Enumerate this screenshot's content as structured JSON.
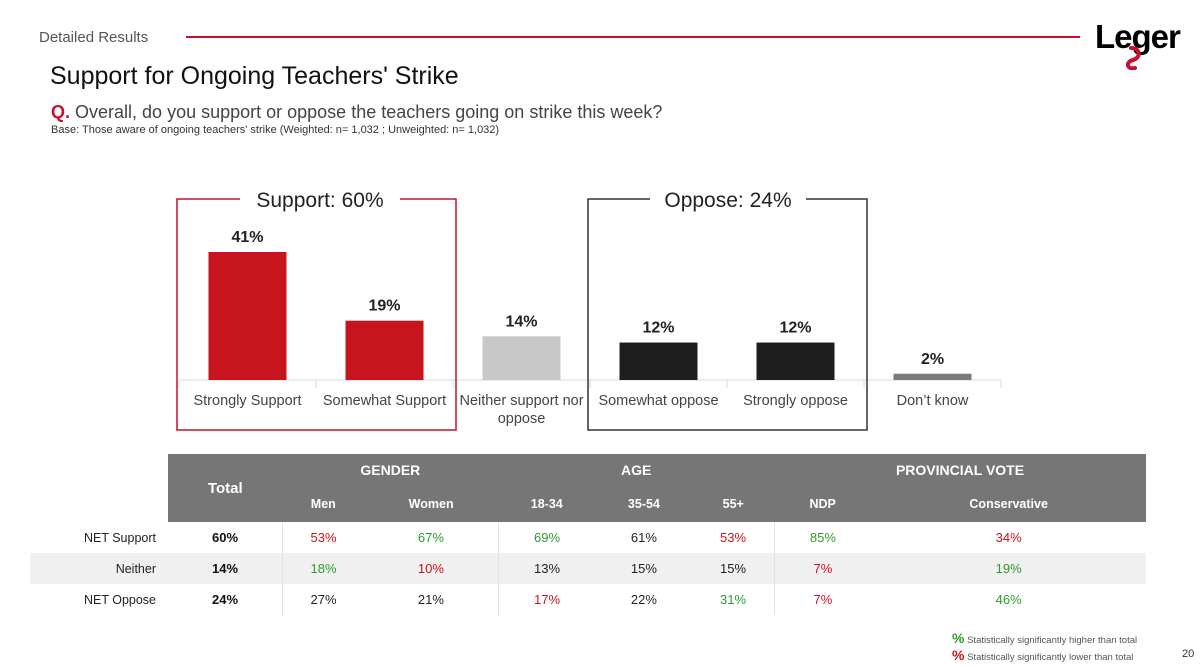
{
  "header": {
    "section": "Detailed Results",
    "logo_text": "Leger",
    "title": "Support for Ongoing Teachers' Strike",
    "question_prefix": "Q.",
    "question": "Overall, do you support or oppose the teachers going on strike this week?",
    "base": "Base: Those aware of ongoing teachers' strike (Weighted: n= 1,032 ; Unweighted: n= 1,032)"
  },
  "colors": {
    "accent_red": "#c8102e",
    "bar_red": "#c8141c",
    "bar_grey": "#c8c8c8",
    "bar_black": "#1e1e1e",
    "bar_darkgrey": "#7a7a7a",
    "higher": "#2e9b2e",
    "lower": "#d0101a"
  },
  "chart_data": {
    "type": "bar",
    "categories": [
      "Strongly Support",
      "Somewhat Support",
      "Neither support nor oppose",
      "Somewhat oppose",
      "Strongly oppose",
      "Don’t know"
    ],
    "values": [
      41,
      19,
      14,
      12,
      12,
      2
    ],
    "data_labels": [
      "41%",
      "19%",
      "14%",
      "12%",
      "12%",
      "2%"
    ],
    "groups": [
      {
        "label": "Support: 60%",
        "categories": [
          "Strongly Support",
          "Somewhat Support"
        ],
        "color": "#c8102e"
      },
      {
        "label": "Oppose: 24%",
        "categories": [
          "Somewhat oppose",
          "Strongly oppose"
        ],
        "color": "#333333"
      }
    ],
    "ylim": [
      0,
      45
    ]
  },
  "table": {
    "total_header": "Total",
    "groups": [
      {
        "label": "GENDER",
        "columns": [
          "Men",
          "Women"
        ]
      },
      {
        "label": "AGE",
        "columns": [
          "18-34",
          "35-54",
          "55+"
        ]
      },
      {
        "label": "PROVINCIAL VOTE",
        "columns": [
          "NDP",
          "Conservative"
        ]
      }
    ],
    "rows": [
      {
        "label": "NET Support",
        "total": "60%",
        "cells": [
          {
            "v": "53%",
            "s": "lo"
          },
          {
            "v": "67%",
            "s": "hi"
          },
          {
            "v": "69%",
            "s": "hi"
          },
          {
            "v": "61%",
            "s": "nm"
          },
          {
            "v": "53%",
            "s": "lo"
          },
          {
            "v": "85%",
            "s": "hi"
          },
          {
            "v": "34%",
            "s": "lo"
          }
        ]
      },
      {
        "label": "Neither",
        "total": "14%",
        "cells": [
          {
            "v": "18%",
            "s": "hi"
          },
          {
            "v": "10%",
            "s": "lo"
          },
          {
            "v": "13%",
            "s": "nm"
          },
          {
            "v": "15%",
            "s": "nm"
          },
          {
            "v": "15%",
            "s": "nm"
          },
          {
            "v": "7%",
            "s": "lo"
          },
          {
            "v": "19%",
            "s": "hi"
          }
        ]
      },
      {
        "label": "NET Oppose",
        "total": "24%",
        "cells": [
          {
            "v": "27%",
            "s": "nm"
          },
          {
            "v": "21%",
            "s": "nm"
          },
          {
            "v": "17%",
            "s": "lo"
          },
          {
            "v": "22%",
            "s": "nm"
          },
          {
            "v": "31%",
            "s": "hi"
          },
          {
            "v": "7%",
            "s": "lo"
          },
          {
            "v": "46%",
            "s": "hi"
          }
        ]
      }
    ]
  },
  "legend": {
    "symbol": "%",
    "higher": "Statistically significantly higher than total",
    "lower": "Statistically significantly lower than total"
  },
  "page_number": "20"
}
